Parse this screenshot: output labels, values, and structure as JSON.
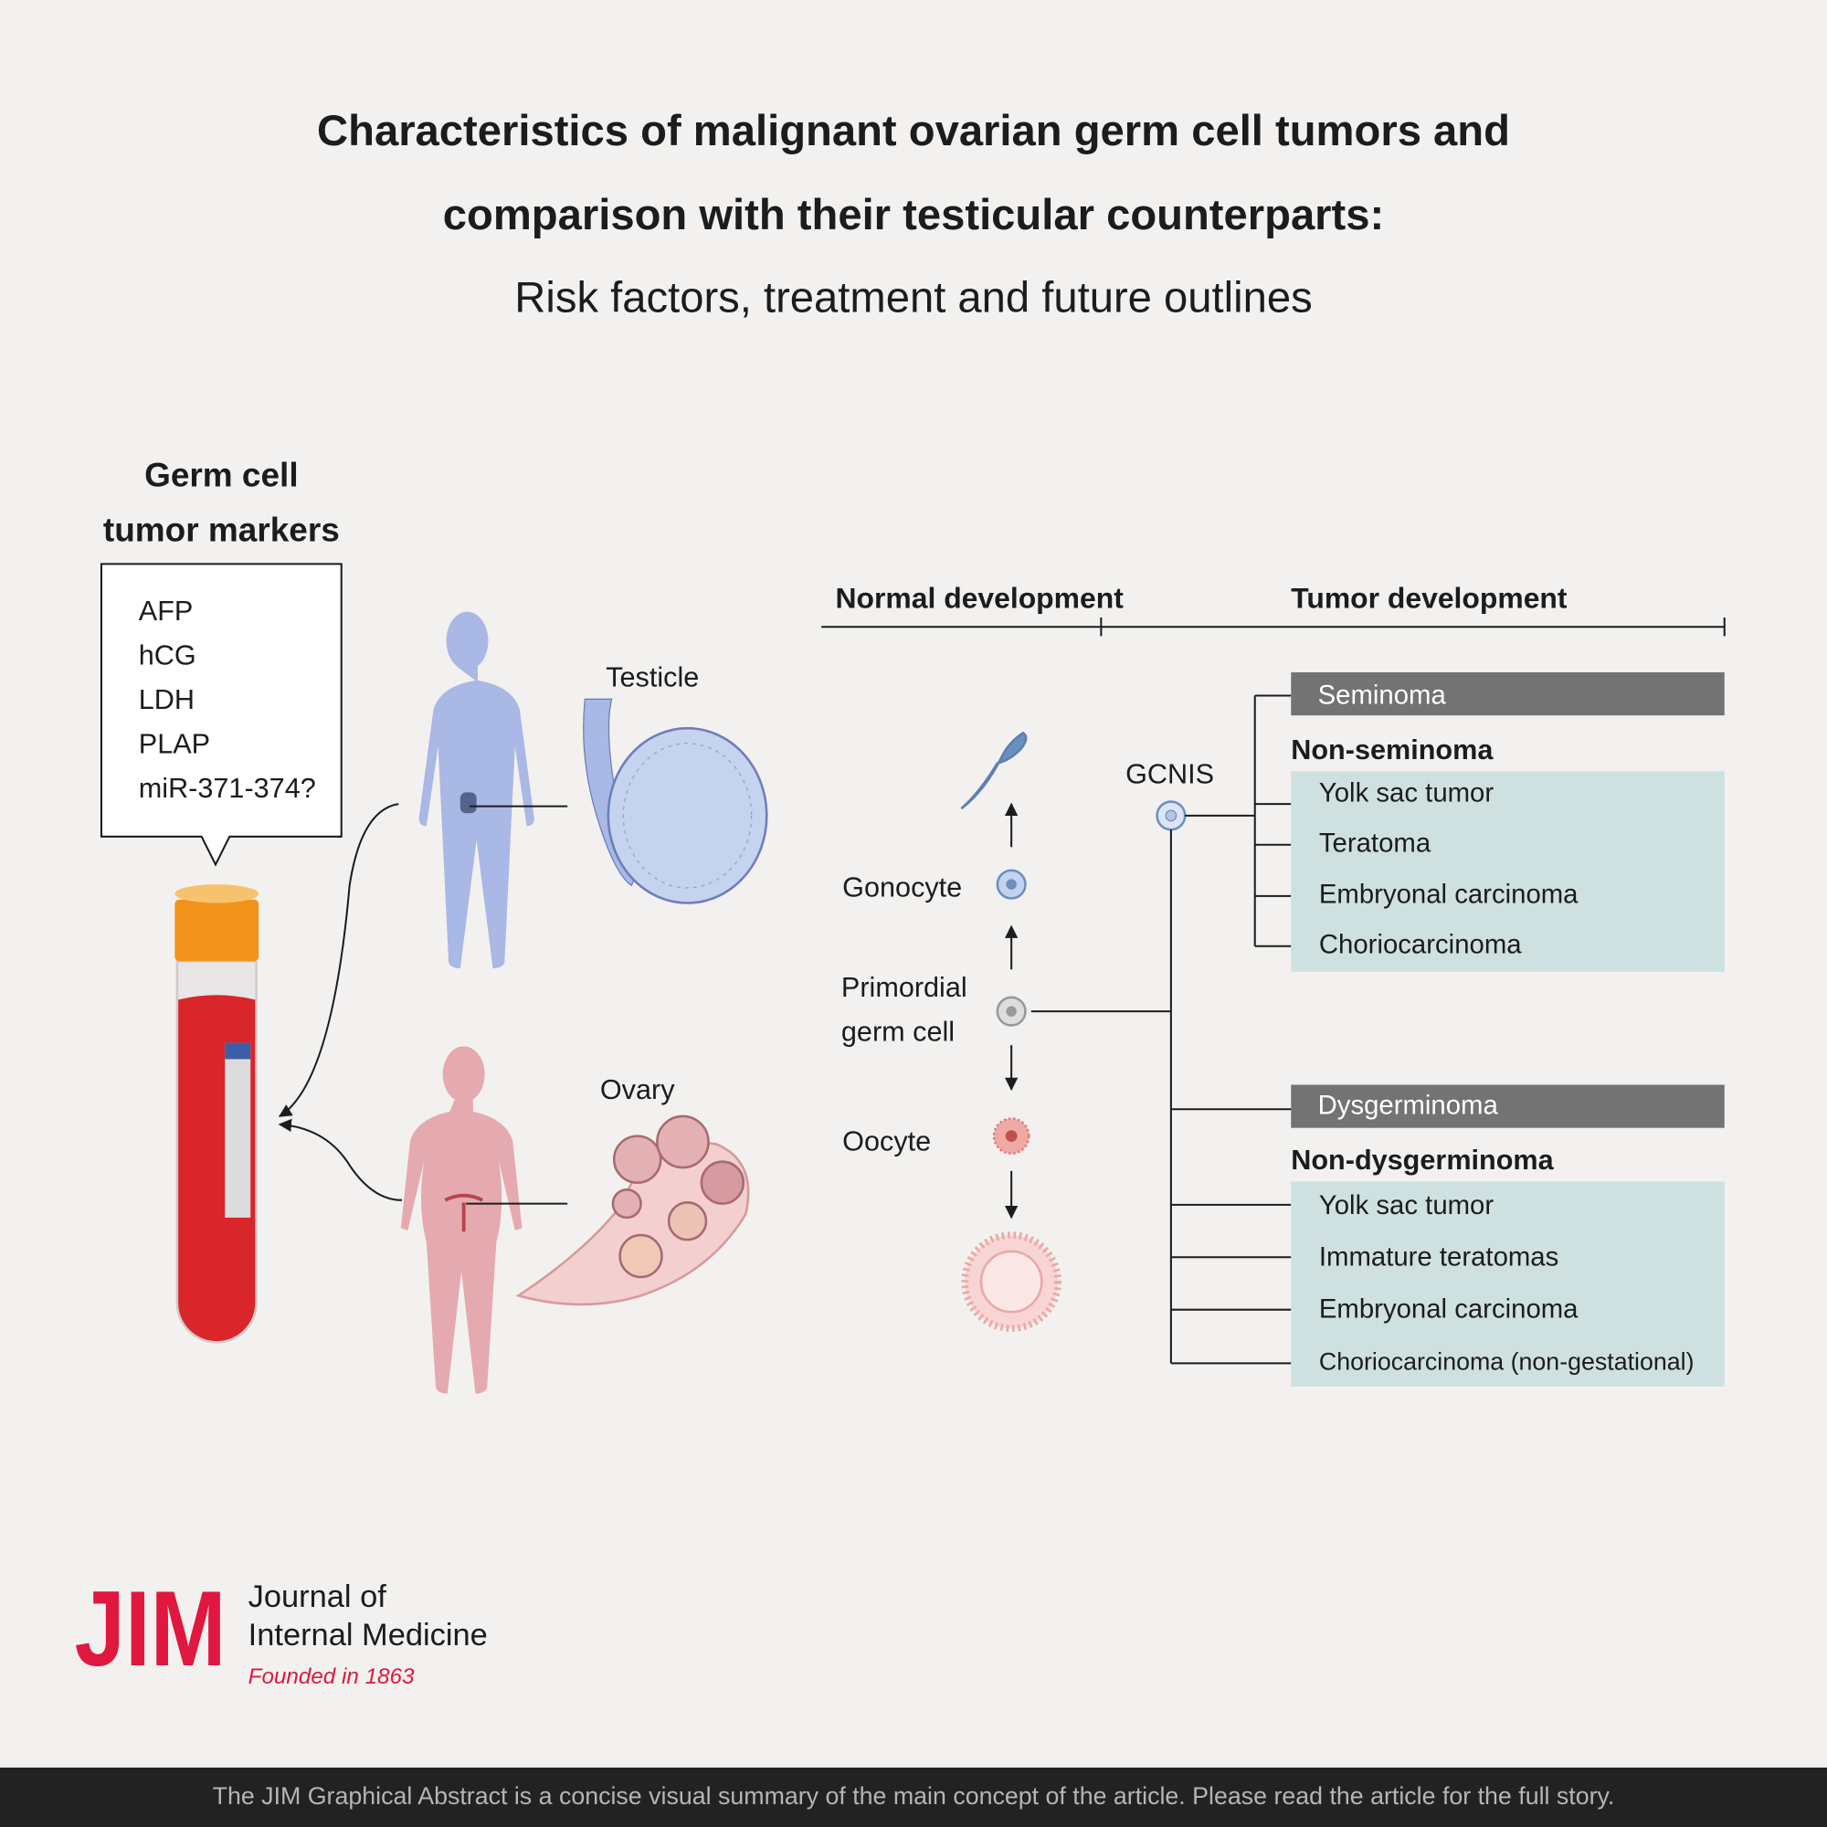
{
  "header": {
    "title": [
      "Characteristics of malignant ovarian germ cell tumors and",
      "comparison with their testicular counterparts:"
    ],
    "subtitle": "Risk factors, treatment and future outlines"
  },
  "markers": {
    "heading": [
      "Germ cell",
      "tumor markers"
    ],
    "items": [
      "AFP",
      "hCG",
      "LDH",
      "PLAP",
      "miR-371-374?"
    ]
  },
  "organs": {
    "testicle": "Testicle",
    "ovary": "Ovary"
  },
  "development": {
    "normal_heading": "Normal development",
    "tumor_heading": "Tumor development",
    "stages": {
      "gonocyte": "Gonocyte",
      "primordial": [
        "Primordial",
        "germ cell"
      ],
      "oocyte": "Oocyte"
    },
    "gcnis": "GCNIS"
  },
  "testicular": {
    "seminoma": "Seminoma",
    "non_heading": "Non-seminoma",
    "items": [
      "Yolk sac tumor",
      "Teratoma",
      "Embryonal carcinoma",
      "Choriocarcinoma"
    ]
  },
  "ovarian": {
    "dysgerminoma": "Dysgerminoma",
    "non_heading": "Non-dysgerminoma",
    "items": [
      "Yolk sac tumor",
      "Immature teratomas",
      "Embryonal carcinoma",
      "Choriocarcinoma (non-gestational)"
    ]
  },
  "logo": {
    "mark": "JIM",
    "name": [
      "Journal of",
      "Internal Medicine"
    ],
    "founded": "Founded in 1863"
  },
  "footer": "The JIM Graphical Abstract is a concise visual summary of the main concept of the article. Please read the article for the full story."
}
